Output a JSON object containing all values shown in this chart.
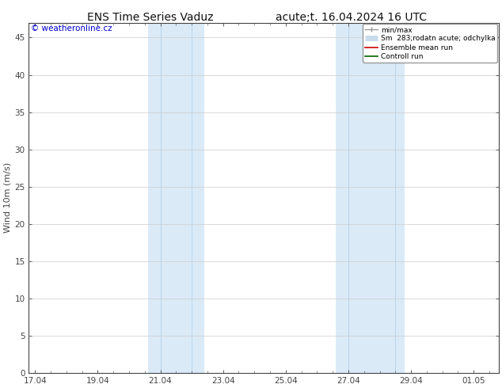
{
  "title_left": "ENS Time Series Vaduz",
  "title_right": "acute;t. 16.04.2024 16 UTC",
  "ylabel": "Wind 10m (m/s)",
  "watermark": "© weatheronline.cz",
  "watermark_color": "#0000cc",
  "bg_color": "#ffffff",
  "plot_bg_color": "#ffffff",
  "y_min": 0,
  "y_max": 47,
  "y_ticks": [
    0,
    5,
    10,
    15,
    20,
    25,
    30,
    35,
    40,
    45
  ],
  "x_tick_labels": [
    "17.04",
    "19.04",
    "21.04",
    "23.04",
    "25.04",
    "27.04",
    "29.04",
    "01.05"
  ],
  "x_tick_positions": [
    0,
    2,
    4,
    6,
    8,
    10,
    12,
    14
  ],
  "x_min": -0.2,
  "x_max": 14.8,
  "shade_bands": [
    {
      "x_start": 3.6,
      "x_end": 5.4,
      "color": "#daeaf7"
    },
    {
      "x_start": 9.6,
      "x_end": 11.8,
      "color": "#daeaf7"
    }
  ],
  "shade_inner_lines": [
    {
      "x": 4.0,
      "color": "#b8d4ea"
    },
    {
      "x": 5.0,
      "color": "#b8d4ea"
    },
    {
      "x": 10.0,
      "color": "#b8d4ea"
    },
    {
      "x": 11.5,
      "color": "#b8d4ea"
    }
  ],
  "legend_labels": [
    "min/max",
    "Sm  283;rodatn acute; odchylka",
    "Ensemble mean run",
    "Controll run"
  ],
  "legend_colors": [
    "#aaaaaa",
    "#c8dcea",
    "#cc0000",
    "#006600"
  ],
  "grid_color": "#cccccc",
  "tick_color": "#444444",
  "axis_color": "#444444",
  "title_fontsize": 10,
  "label_fontsize": 8,
  "tick_fontsize": 7.5,
  "watermark_fontsize": 7.5
}
